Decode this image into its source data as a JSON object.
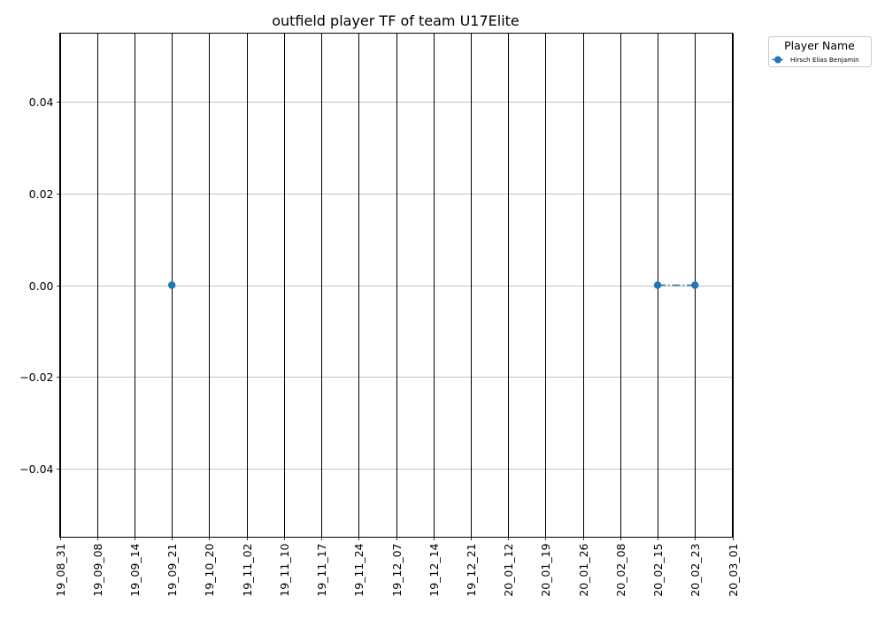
{
  "chart_data": {
    "type": "line",
    "title": "outfield player TF of team U17Elite",
    "xlabel": "",
    "ylabel": "",
    "categories": [
      "19_08_31",
      "19_09_08",
      "19_09_14",
      "19_09_21",
      "19_10_20",
      "19_11_02",
      "19_11_10",
      "19_11_17",
      "19_11_24",
      "19_12_07",
      "19_12_14",
      "19_12_21",
      "20_01_12",
      "20_01_19",
      "20_01_26",
      "20_02_08",
      "20_02_15",
      "20_02_23",
      "20_03_01"
    ],
    "yticks": [
      "0.04",
      "0.02",
      "0.00",
      "−0.02",
      "−0.04"
    ],
    "ytick_values": [
      0.04,
      0.02,
      0.0,
      -0.02,
      -0.04
    ],
    "ylim": [
      -0.055,
      0.055
    ],
    "grid": "horizontal gridlines, vertical lines at each date",
    "legend": {
      "title": "Player Name",
      "placement": "outside upper-right"
    },
    "series": [
      {
        "name": "Hirsch Elias Benjamin",
        "color": "#1f77b4",
        "linestyle": "dash-dot",
        "marker": "circle",
        "points": [
          {
            "x": "19_09_21",
            "y": 0.0
          },
          {
            "x": "20_02_15",
            "y": 0.0
          },
          {
            "x": "20_02_23",
            "y": 0.0
          }
        ]
      }
    ]
  }
}
